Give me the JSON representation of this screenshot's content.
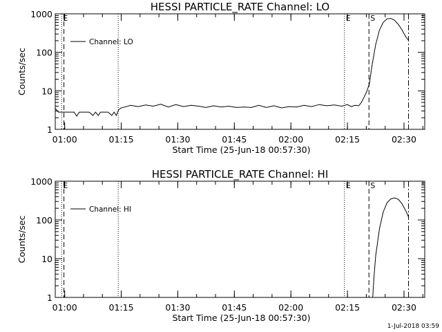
{
  "footer_timestamp": "1-Jul-2018 03:59",
  "chart_data": [
    {
      "type": "line",
      "title": "HESSI PARTICLE_RATE Channel: LO",
      "xlabel": "Start Time (25-Jun-18 00:57:30)",
      "ylabel": "Counts/sec",
      "y_scale": "log",
      "ylim": [
        1,
        1000
      ],
      "y_ticks": [
        "1",
        "10",
        "100",
        "1000"
      ],
      "x_unit": "minutes after start time",
      "xlim": [
        0,
        98
      ],
      "x_ticks": [
        {
          "label": "01:00",
          "value": 2.5
        },
        {
          "label": "01:15",
          "value": 17.5
        },
        {
          "label": "01:30",
          "value": 32.5
        },
        {
          "label": "01:45",
          "value": 47.5
        },
        {
          "label": "02:00",
          "value": 62.5
        },
        {
          "label": "02:15",
          "value": 77.5
        },
        {
          "label": "02:30",
          "value": 92.5
        }
      ],
      "legend": "Channel: LO",
      "legend_position": "top-left",
      "markers": [
        {
          "label": "E",
          "x": 1.7,
          "style": "dotted"
        },
        {
          "label": "",
          "x": 2.3,
          "style": "dashed"
        },
        {
          "label": "",
          "x": 16.7,
          "style": "dotted"
        },
        {
          "label": "E",
          "x": 76.7,
          "style": "dotted"
        },
        {
          "label": "S",
          "x": 83.2,
          "style": "dashed"
        },
        {
          "label": "",
          "x": 93.7,
          "style": "dashdot"
        }
      ],
      "series": [
        {
          "x": [
            0,
            0.8,
            3,
            5,
            5.7,
            6.4,
            7.5,
            9,
            10,
            10.7,
            11.4,
            12,
            12.8,
            14,
            15,
            15.6,
            16.2,
            16.8,
            17.5,
            18.5,
            20,
            22,
            24,
            26,
            28,
            30,
            32,
            34,
            36,
            38,
            40,
            42,
            44,
            46,
            48,
            50,
            52,
            54,
            56,
            58,
            60,
            62,
            64,
            66,
            68,
            70,
            72,
            74,
            76,
            77.5,
            78.5,
            79.5,
            80.5,
            81.2,
            81.8,
            82.5,
            83.3,
            84,
            85,
            86,
            87,
            88,
            89,
            90,
            91,
            92,
            93,
            93.7
          ],
          "y": [
            3.5,
            2.8,
            2.8,
            2.8,
            2.2,
            2.8,
            2.8,
            2.8,
            2.3,
            2.8,
            2.3,
            2.8,
            2.8,
            2.8,
            2.3,
            2.8,
            2.3,
            3.2,
            3.6,
            3.8,
            4.2,
            3.9,
            4.3,
            4,
            4.5,
            3.8,
            4.4,
            3.9,
            4.2,
            4,
            3.7,
            4.1,
            3.8,
            4,
            3.7,
            3.8,
            3.7,
            4.2,
            3.7,
            4.1,
            3.6,
            3.9,
            3.8,
            4.2,
            3.9,
            4.4,
            4.1,
            4.3,
            4,
            4.4,
            3.9,
            4.2,
            4.1,
            5,
            6.5,
            9,
            15,
            45,
            160,
            380,
            600,
            740,
            760,
            680,
            530,
            380,
            250,
            205
          ]
        }
      ]
    },
    {
      "type": "line",
      "title": "HESSI PARTICLE_RATE Channel: HI",
      "xlabel": "Start Time (25-Jun-18 00:57:30)",
      "ylabel": "Counts/sec",
      "y_scale": "log",
      "ylim": [
        1,
        1000
      ],
      "y_ticks": [
        "1",
        "10",
        "100",
        "1000"
      ],
      "x_unit": "minutes after start time",
      "xlim": [
        0,
        98
      ],
      "x_ticks": [
        {
          "label": "01:00",
          "value": 2.5
        },
        {
          "label": "01:15",
          "value": 17.5
        },
        {
          "label": "01:30",
          "value": 32.5
        },
        {
          "label": "01:45",
          "value": 47.5
        },
        {
          "label": "02:00",
          "value": 62.5
        },
        {
          "label": "02:15",
          "value": 77.5
        },
        {
          "label": "02:30",
          "value": 92.5
        }
      ],
      "legend": "Channel: HI",
      "legend_position": "top-left",
      "markers": [
        {
          "label": "E",
          "x": 1.7,
          "style": "dotted"
        },
        {
          "label": "",
          "x": 2.3,
          "style": "dashed"
        },
        {
          "label": "",
          "x": 16.7,
          "style": "dotted"
        },
        {
          "label": "E",
          "x": 76.7,
          "style": "dotted"
        },
        {
          "label": "S",
          "x": 83.2,
          "style": "dashed"
        },
        {
          "label": "",
          "x": 93.7,
          "style": "dashdot"
        }
      ],
      "series": [
        {
          "x": [
            84.2,
            84.5,
            85,
            86,
            87,
            88,
            89,
            90,
            91,
            92,
            93,
            93.7
          ],
          "y": [
            1,
            3,
            12,
            60,
            160,
            280,
            350,
            370,
            340,
            260,
            170,
            120
          ]
        }
      ]
    }
  ]
}
